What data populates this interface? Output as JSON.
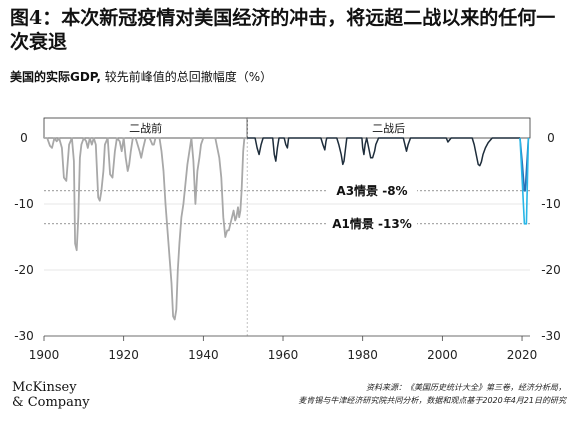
{
  "title": "图4：本次新冠疫情对美国经济的冲击，将远超二战以来的任何一次衰退",
  "subtitle_bold": "美国的实际GDP,",
  "subtitle_rest": " 较先前峰值的总回撤幅度（%）",
  "logo": [
    "McKinsey",
    "& Company"
  ],
  "source_lines": [
    "资料来源：《美国历史统计大全》第三卷，经济分析局，",
    "麦肯锡与牛津经济研究院共同分析，数据和观点基于2020年4月21日的研究"
  ],
  "chart_data": {
    "type": "line",
    "xlim": [
      1900,
      2022
    ],
    "ylim": [
      -30,
      0
    ],
    "x_ticks": [
      1900,
      1920,
      1940,
      1960,
      1980,
      2000,
      2020
    ],
    "x_tick_labels": [
      "1900",
      "1920",
      "1940",
      "1960",
      "1980",
      "2000",
      "2020"
    ],
    "y_ticks": [
      0,
      -10,
      -20,
      -30
    ],
    "y_tick_labels": [
      "0",
      "-10",
      "-20",
      "-30"
    ],
    "periods": [
      {
        "label": "二战前",
        "from": 1900,
        "to": 1951
      },
      {
        "label": "二战后",
        "from": 1951,
        "to": 2022
      }
    ],
    "reference_lines": [
      {
        "label": "A3情景 -8%",
        "value": -8
      },
      {
        "label": "A1情景 -13%",
        "value": -13
      }
    ],
    "colors": {
      "pre_war": "#a8a8a8",
      "post_war": "#1e2d3b",
      "a3": "#2a6fb5",
      "a1": "#29b6e6",
      "grid": "#cfcfcf"
    },
    "series": [
      {
        "x": [
          1900,
          1900.8,
          1901.5,
          1902,
          1902.6,
          1903.2,
          1903.8,
          1904.5,
          1905,
          1905.6,
          1906.3,
          1907,
          1907.5,
          1907.8,
          1908.2,
          1908.6,
          1909,
          1909.4,
          1910,
          1910.6,
          1911,
          1911.5,
          1912,
          1912.5,
          1913,
          1913.6,
          1914,
          1914.4,
          1914.9,
          1915.3,
          1916,
          1916.6,
          1917.2,
          1917.8,
          1918.3,
          1919,
          1919.5,
          1920,
          1920.5,
          1921,
          1921.4,
          1921.8,
          1922.3,
          1923,
          1924,
          1924.4,
          1924.9,
          1925.5,
          1926.5,
          1927.2,
          1927.6,
          1928,
          1929,
          1929.5,
          1930,
          1930.5,
          1931,
          1931.5,
          1932,
          1932.4,
          1932.8,
          1933.2,
          1933.6,
          1934,
          1934.5,
          1935,
          1935.5,
          1936,
          1937,
          1937.5,
          1938,
          1938.5,
          1939,
          1939.4,
          1940,
          1940.5,
          1941,
          1942,
          1943,
          1944,
          1944.5,
          1945,
          1945.5,
          1946,
          1946.4,
          1946.8,
          1947.2,
          1947.6,
          1948,
          1948.3,
          1948.7,
          1949,
          1949.3,
          1949.6,
          1950,
          1950.3,
          1951
        ],
        "y": [
          0,
          0,
          -1.2,
          -1.5,
          0,
          -0.5,
          0,
          -1.5,
          -6,
          -6.5,
          -1,
          0,
          -3.5,
          -16,
          -17,
          -12,
          -3,
          -1,
          0,
          -0.5,
          -1.5,
          0,
          -1,
          0,
          -1,
          -9,
          -9.5,
          -8,
          -5,
          -1,
          0,
          -5.5,
          -6,
          -2,
          0,
          -0.5,
          -2,
          0,
          -3,
          -5,
          -4,
          -2,
          0,
          0,
          -2,
          -3,
          -1.5,
          0,
          0,
          -1,
          -1,
          0,
          0,
          -2,
          -5,
          -10,
          -14,
          -18,
          -22,
          -27,
          -27.5,
          -26,
          -20,
          -16,
          -12,
          -10,
          -7,
          -4,
          0,
          -3.5,
          -10,
          -5,
          -3,
          -1,
          0,
          0,
          0,
          0,
          0,
          -3,
          -6,
          -12,
          -15,
          -14,
          -14,
          -13,
          -12,
          -11,
          -12.5,
          -12,
          -10.5,
          -12,
          -11,
          -8,
          -2,
          0,
          0
        ]
      },
      {
        "x": [
          1951,
          1953,
          1953.5,
          1954,
          1954.5,
          1955,
          1957.4,
          1957.8,
          1958.2,
          1958.6,
          1959,
          1960.3,
          1960.7,
          1961.1,
          1961.4,
          1962,
          1969.5,
          1970,
          1970.5,
          1970.8,
          1971,
          1973.5,
          1974,
          1974.6,
          1975,
          1975.3,
          1975.6,
          1976,
          1979.8,
          1980,
          1980.3,
          1980.6,
          1981,
          1981.5,
          1982,
          1982.5,
          1983,
          1983.3,
          1984,
          1990.2,
          1990.6,
          1991,
          1991.4,
          1992,
          2001,
          2001.4,
          2001.8,
          2002.2,
          2007.5,
          2008,
          2008.5,
          2009,
          2009.4,
          2009.8,
          2010.2,
          2010.8,
          2011.5,
          2012.5,
          2019.5
        ],
        "y": [
          0,
          0,
          -1.5,
          -2.5,
          -1,
          0,
          0,
          -2.5,
          -3.5,
          -1.5,
          0,
          0,
          -1,
          -1.5,
          0,
          0,
          0,
          -1,
          -1.8,
          -0.5,
          0,
          0,
          -1,
          -2.5,
          -4,
          -3.5,
          -2,
          0,
          0,
          -1.5,
          -2.5,
          -1,
          0,
          -1.5,
          -3,
          -3,
          -2,
          -1,
          0,
          0,
          -1,
          -2,
          -1,
          0,
          0,
          -0.6,
          -0.3,
          0,
          0,
          -1,
          -2.5,
          -4,
          -4.2,
          -3.6,
          -2.5,
          -1.5,
          -0.7,
          0,
          0
        ]
      },
      {
        "name": "A3情景",
        "x": [
          2019.5,
          2020.1,
          2020.6,
          2020.8,
          2021.2,
          2021.6
        ],
        "y": [
          0,
          -4,
          -8,
          -8,
          -4,
          0
        ]
      },
      {
        "name": "A1情景",
        "x": [
          2019.5,
          2020.1,
          2020.6,
          2021.1,
          2021.6
        ],
        "y": [
          0,
          -7,
          -13,
          -13,
          0
        ]
      }
    ]
  }
}
